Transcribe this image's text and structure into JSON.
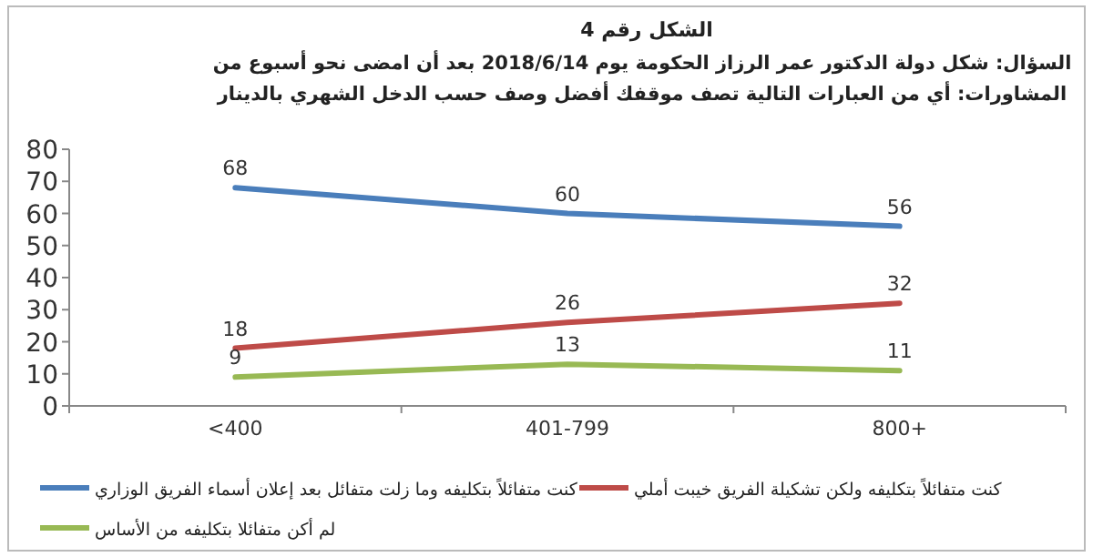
{
  "chart_data": {
    "type": "line",
    "title": "الشكل رقم 4",
    "subtitle": "السؤال: شكل دولة الدكتور عمر الرزاز الحكومة يوم 2018/6/14 بعد أن امضى نحو أسبوع من المشاورات: أي من العبارات التالية تصف موقفك أفضل وصف حسب الدخل الشهري بالدينار",
    "categories": [
      "<400",
      "401-799",
      "800+"
    ],
    "series": [
      {
        "name": "كنت متفائلاً بتكليفه وما زلت متفائل بعد إعلان أسماء الفريق الوزاري",
        "color": "#4a7ebb",
        "values": [
          68,
          60,
          56
        ]
      },
      {
        "name": "كنت متفائلاً بتكليفه ولكن تشكيلة الفريق خيبت أملي",
        "color": "#be4b48",
        "values": [
          18,
          26,
          32
        ]
      },
      {
        "name": "لم أكن متفائلا بتكليفه من الأساس",
        "color": "#98b954",
        "values": [
          9,
          13,
          11
        ]
      }
    ],
    "ylim": [
      0,
      80
    ],
    "yticks": [
      0,
      10,
      20,
      30,
      40,
      50,
      60,
      70,
      80
    ],
    "data_labels": true,
    "legend": "bottom",
    "grid": false,
    "marker": "none",
    "line_style": "solid"
  }
}
